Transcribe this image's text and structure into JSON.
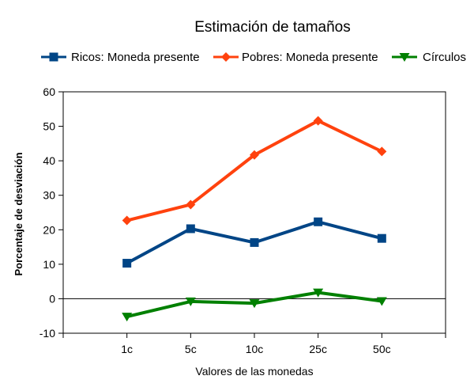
{
  "chart_data": {
    "type": "line",
    "title": "Estimación de tamaños",
    "xlabel": "Valores de las monedas",
    "ylabel": "Porcentaje de desviación",
    "categories": [
      "1c",
      "5c",
      "10c",
      "25c",
      "50c"
    ],
    "ylim": [
      -10,
      60
    ],
    "yticks": [
      -10,
      0,
      10,
      20,
      30,
      40,
      50,
      60
    ],
    "grid": false,
    "legend_position": "top",
    "series": [
      {
        "name": "Ricos: Moneda presente",
        "values": [
          10.3,
          20.3,
          16.3,
          22.3,
          17.5
        ],
        "color": "#004586",
        "marker": "square"
      },
      {
        "name": "Pobres: Moneda presente",
        "values": [
          22.7,
          27.3,
          41.7,
          51.6,
          42.7
        ],
        "color": "#ff420e",
        "marker": "diamond"
      },
      {
        "name": "Círculos",
        "values": [
          -5.2,
          -0.8,
          -1.3,
          1.8,
          -0.7
        ],
        "color": "#008000",
        "marker": "triangle-down"
      }
    ]
  }
}
